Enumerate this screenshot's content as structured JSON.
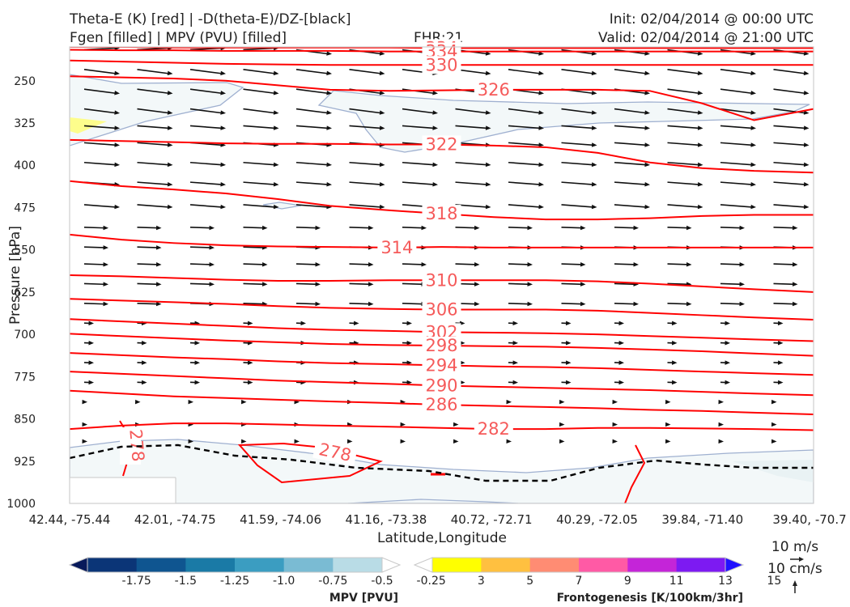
{
  "header": {
    "title_line1": "Theta-E (K) [red] | -D(theta-E)/DZ-[black]",
    "title_line2": "Fgen [filled] | MPV (PVU) [filled]",
    "fhr": "FHR:21",
    "init": "Init: 02/04/2014 @ 00:00 UTC",
    "valid": "Valid: 02/04/2014 @ 21:00 UTC"
  },
  "chart_data": {
    "type": "cross-section",
    "xlabel": "Latitude,Longitude",
    "ylabel": "Pressure [hPa]",
    "x_ticks": [
      "42.44, -75.44",
      "42.01, -74.75",
      "41.59, -74.06",
      "41.16, -73.38",
      "40.72, -72.71",
      "40.29, -72.05",
      "39.84, -71.40",
      "39.40, -70.7"
    ],
    "y_ticks": [
      250,
      325,
      400,
      475,
      550,
      625,
      700,
      775,
      850,
      925,
      1000
    ],
    "ylim": [
      1000,
      190
    ],
    "theta_e": {
      "color": "#ff0000",
      "x_frac": [
        0,
        0.07,
        0.14,
        0.21,
        0.28,
        0.35,
        0.43,
        0.5,
        0.57,
        0.64,
        0.71,
        0.78,
        0.85,
        0.92,
        1
      ],
      "contours": [
        {
          "label": "334",
          "label_at": 0.5,
          "p": [
            190,
            190,
            191,
            191,
            191,
            191,
            191,
            192,
            192,
            192,
            192,
            192,
            192,
            192,
            192
          ]
        },
        {
          "label": "334",
          "label_at": 0.5,
          "p": [
            195,
            196,
            196,
            197,
            197,
            197,
            198,
            198,
            198,
            198,
            198,
            198,
            198,
            198,
            198
          ]
        },
        {
          "label": "330",
          "label_at": 0.5,
          "p": [
            214,
            216,
            218,
            220,
            221,
            222,
            222,
            222,
            222,
            222,
            222,
            222,
            222,
            222,
            222
          ]
        },
        {
          "label": "326",
          "label_at": 0.57,
          "p": [
            242,
            244,
            246,
            250,
            258,
            266,
            268,
            267,
            266,
            266,
            266,
            268,
            290,
            320,
            300
          ]
        },
        {
          "label": "322",
          "label_at": 0.5,
          "p": [
            355,
            357,
            359,
            361,
            362,
            362,
            363,
            363,
            365,
            368,
            378,
            395,
            405,
            410,
            413
          ]
        },
        {
          "label": "318",
          "label_at": 0.5,
          "p": [
            428,
            437,
            443,
            450,
            460,
            472,
            480,
            486,
            492,
            496,
            496,
            494,
            490,
            488,
            488
          ]
        },
        {
          "label": "314",
          "label_at": 0.44,
          "p": [
            523,
            532,
            538,
            542,
            544,
            545,
            546,
            545,
            546,
            546,
            546,
            546,
            546,
            546,
            546
          ]
        },
        {
          "label": "310",
          "label_at": 0.5,
          "p": [
            595,
            597,
            600,
            603,
            605,
            605,
            604,
            604,
            604,
            604,
            606,
            610,
            615,
            620,
            625
          ]
        },
        {
          "label": "306",
          "label_at": 0.5,
          "p": [
            637,
            640,
            643,
            646,
            650,
            653,
            655,
            656,
            656,
            656,
            658,
            662,
            666,
            670,
            674
          ]
        },
        {
          "label": "302",
          "label_at": 0.5,
          "p": [
            673,
            677,
            681,
            685,
            689,
            692,
            694,
            696,
            697,
            698,
            700,
            703,
            706,
            709,
            712
          ]
        },
        {
          "label": "298",
          "label_at": 0.5,
          "p": [
            699,
            703,
            707,
            711,
            714,
            717,
            719,
            720,
            721,
            722,
            724,
            727,
            730,
            734,
            738
          ]
        },
        {
          "label": "294",
          "label_at": 0.5,
          "p": [
            733,
            737,
            741,
            744,
            748,
            751,
            753,
            755,
            757,
            758,
            760,
            763,
            766,
            769,
            772
          ]
        },
        {
          "label": "290",
          "label_at": 0.5,
          "p": [
            766,
            770,
            774,
            778,
            782,
            785,
            788,
            791,
            793,
            795,
            797,
            799,
            802,
            805,
            808
          ]
        },
        {
          "label": "286",
          "label_at": 0.5,
          "p": [
            800,
            805,
            810,
            813,
            816,
            819,
            822,
            825,
            827,
            829,
            831,
            834,
            836,
            839,
            842
          ]
        },
        {
          "label": "282",
          "label_at": 0.57,
          "p": [
            868,
            862,
            858,
            858,
            860,
            862,
            864,
            866,
            868,
            868,
            866,
            866,
            867,
            868,
            870
          ]
        }
      ],
      "labels_278": [
        "278",
        "278"
      ]
    },
    "legends": [
      {
        "name": "MPV [PVU]",
        "ticks": [
          "-1.75",
          "-1.5",
          "-1.25",
          "-1.0",
          "-0.75",
          "-0.5",
          "-0.25"
        ],
        "colors": [
          "#08195a",
          "#0b3577",
          "#0f5590",
          "#1a7aa6",
          "#3b9dc1",
          "#7abbd3",
          "#b9dce6",
          "#ffffff"
        ]
      },
      {
        "name": "Frontogenesis [K/100km/3hr]",
        "ticks": [
          "3",
          "5",
          "7",
          "9",
          "11",
          "13",
          "15"
        ],
        "colors": [
          "#ffffff",
          "#ffff00",
          "#ffc040",
          "#ff8c73",
          "#ff5aa5",
          "#c425d8",
          "#7d1af2",
          "#2011ff"
        ]
      }
    ],
    "wind_key": {
      "horizontal": "10 m/s",
      "vertical": "10 cm/s"
    },
    "grid": false
  }
}
